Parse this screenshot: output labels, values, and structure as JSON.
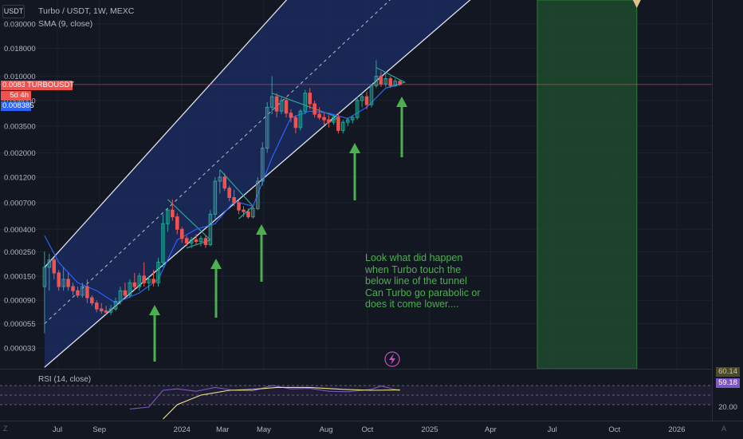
{
  "header": {
    "quote_currency": "USDT",
    "symbol_line": "Turbo / USDT, 1W, MEXC",
    "sma_label": "SMA (9, close)",
    "rsi_label": "RSI (14, close)"
  },
  "price_tags": {
    "last_price": "0.008399",
    "symbol": "TURBOUSDT",
    "countdown": "5d 4h",
    "sma_value": "0.008385"
  },
  "rsi_tags": {
    "upper": "60.14",
    "current": "59.18",
    "level_low": "20.00"
  },
  "annotation": [
    "Look what did happen",
    "when Turbo touch the",
    "below line of the tunnel",
    "Can Turbo go parabolic or",
    "does it come lower...."
  ],
  "colors": {
    "background": "#131722",
    "up_candle": "#26a69a",
    "down_candle": "#ef5350",
    "sma_line": "#2962ff",
    "channel_fill": "#1b2a5e",
    "channel_line": "#e0e3eb",
    "arrow": "#4caf50",
    "projection_zone": "#1e4a2e",
    "annotation_text": "#4caf50",
    "rsi_line": "#7e57c2"
  },
  "icons": {
    "logo": "tradingview-logo-icon",
    "lightning": "lightning-icon",
    "zoom": "zoom-icon",
    "projection_marker": "triangle-down-icon"
  },
  "chart_data": {
    "type": "candlestick",
    "title": "Turbo / USDT, 1W, MEXC",
    "yscale": "log",
    "ylim": [
      2.2e-05,
      0.03
    ],
    "y_tick_labels": [
      "0.030000",
      "0.018000",
      "0.010000",
      "0.006000",
      "0.003500",
      "0.002000",
      "0.001200",
      "0.000700",
      "0.000400",
      "0.000250",
      "0.000150",
      "0.000090",
      "0.000055",
      "0.000033"
    ],
    "x_tick_labels": [
      "Jul",
      "Sep",
      "2024",
      "Mar",
      "May",
      "Aug",
      "Oct",
      "2025",
      "Apr",
      "Jul",
      "Oct",
      "2026"
    ],
    "x_range": [
      "2023-06-12",
      "2026-03-15"
    ],
    "candles": [
      {
        "date": "2023-06-12",
        "o": 0.00012,
        "h": 0.00025,
        "l": 4.5e-05,
        "c": 0.00018
      },
      {
        "date": "2023-06-19",
        "o": 0.00018,
        "h": 0.00024,
        "l": 0.00011,
        "c": 0.00021
      },
      {
        "date": "2023-06-26",
        "o": 0.00021,
        "h": 0.00022,
        "l": 0.00014,
        "c": 0.00016
      },
      {
        "date": "2023-07-03",
        "o": 0.00016,
        "h": 0.00017,
        "l": 0.00011,
        "c": 0.00012
      },
      {
        "date": "2023-07-10",
        "o": 0.00012,
        "h": 0.00018,
        "l": 0.00011,
        "c": 0.00014
      },
      {
        "date": "2023-07-17",
        "o": 0.00014,
        "h": 0.00016,
        "l": 0.00011,
        "c": 0.00012
      },
      {
        "date": "2023-07-24",
        "o": 0.00012,
        "h": 0.00013,
        "l": 0.0001,
        "c": 0.00011
      },
      {
        "date": "2023-07-31",
        "o": 0.00011,
        "h": 0.00012,
        "l": 9.5e-05,
        "c": 0.0001
      },
      {
        "date": "2023-08-07",
        "o": 0.0001,
        "h": 0.00013,
        "l": 9.5e-05,
        "c": 0.00012
      },
      {
        "date": "2023-08-14",
        "o": 0.00012,
        "h": 0.00014,
        "l": 8.5e-05,
        "c": 9.5e-05
      },
      {
        "date": "2023-08-21",
        "o": 9.5e-05,
        "h": 0.0001,
        "l": 8e-05,
        "c": 8.5e-05
      },
      {
        "date": "2023-08-28",
        "o": 8.5e-05,
        "h": 9e-05,
        "l": 7e-05,
        "c": 7.5e-05
      },
      {
        "date": "2023-09-04",
        "o": 7.5e-05,
        "h": 8.5e-05,
        "l": 6.8e-05,
        "c": 7.2e-05
      },
      {
        "date": "2023-09-11",
        "o": 7.2e-05,
        "h": 8e-05,
        "l": 6.6e-05,
        "c": 7e-05
      },
      {
        "date": "2023-09-18",
        "o": 7e-05,
        "h": 8.2e-05,
        "l": 6.6e-05,
        "c": 7.5e-05
      },
      {
        "date": "2023-09-25",
        "o": 7.5e-05,
        "h": 9.5e-05,
        "l": 7.2e-05,
        "c": 8.8e-05
      },
      {
        "date": "2023-10-02",
        "o": 8.8e-05,
        "h": 0.00012,
        "l": 8.2e-05,
        "c": 0.00011
      },
      {
        "date": "2023-10-09",
        "o": 0.00011,
        "h": 0.00013,
        "l": 9.5e-05,
        "c": 0.0001
      },
      {
        "date": "2023-10-16",
        "o": 0.0001,
        "h": 0.00014,
        "l": 9.5e-05,
        "c": 0.00013
      },
      {
        "date": "2023-10-23",
        "o": 0.00013,
        "h": 0.00016,
        "l": 0.00011,
        "c": 0.00012
      },
      {
        "date": "2023-10-30",
        "o": 0.00012,
        "h": 0.00016,
        "l": 0.00011,
        "c": 0.00015
      },
      {
        "date": "2023-11-06",
        "o": 0.00015,
        "h": 0.0002,
        "l": 0.00012,
        "c": 0.00013
      },
      {
        "date": "2023-11-13",
        "o": 0.00013,
        "h": 0.00015,
        "l": 0.00011,
        "c": 0.00014
      },
      {
        "date": "2023-11-20",
        "o": 0.00014,
        "h": 0.00017,
        "l": 0.00012,
        "c": 0.00013
      },
      {
        "date": "2023-11-27",
        "o": 0.00013,
        "h": 0.00022,
        "l": 0.00012,
        "c": 0.0002
      },
      {
        "date": "2023-12-04",
        "o": 0.0002,
        "h": 0.00055,
        "l": 0.00018,
        "c": 0.00045
      },
      {
        "date": "2023-12-11",
        "o": 0.00045,
        "h": 0.00062,
        "l": 0.00038,
        "c": 0.0006
      },
      {
        "date": "2023-12-18",
        "o": 0.0006,
        "h": 0.00075,
        "l": 0.00048,
        "c": 0.00052
      },
      {
        "date": "2023-12-25",
        "o": 0.00052,
        "h": 0.00056,
        "l": 0.00036,
        "c": 0.0004
      },
      {
        "date": "2024-01-01",
        "o": 0.0004,
        "h": 0.00042,
        "l": 0.0003,
        "c": 0.00033
      },
      {
        "date": "2024-01-08",
        "o": 0.00033,
        "h": 0.00035,
        "l": 0.00028,
        "c": 0.0003
      },
      {
        "date": "2024-01-15",
        "o": 0.0003,
        "h": 0.00034,
        "l": 0.00027,
        "c": 0.00032
      },
      {
        "date": "2024-01-22",
        "o": 0.00032,
        "h": 0.00036,
        "l": 0.00029,
        "c": 0.00031
      },
      {
        "date": "2024-01-29",
        "o": 0.00031,
        "h": 0.00035,
        "l": 0.00028,
        "c": 0.00033
      },
      {
        "date": "2024-02-05",
        "o": 0.00033,
        "h": 0.00035,
        "l": 0.00027,
        "c": 0.00029
      },
      {
        "date": "2024-02-12",
        "o": 0.00029,
        "h": 0.0006,
        "l": 0.00028,
        "c": 0.00055
      },
      {
        "date": "2024-02-19",
        "o": 0.00055,
        "h": 0.0012,
        "l": 0.0005,
        "c": 0.0011
      },
      {
        "date": "2024-02-26",
        "o": 0.0011,
        "h": 0.0014,
        "l": 0.00085,
        "c": 0.0012
      },
      {
        "date": "2024-03-04",
        "o": 0.0012,
        "h": 0.0013,
        "l": 0.0009,
        "c": 0.00095
      },
      {
        "date": "2024-03-11",
        "o": 0.00095,
        "h": 0.001,
        "l": 0.00072,
        "c": 0.00078
      },
      {
        "date": "2024-03-18",
        "o": 0.00078,
        "h": 0.00092,
        "l": 0.00065,
        "c": 0.0007
      },
      {
        "date": "2024-03-25",
        "o": 0.0007,
        "h": 0.00074,
        "l": 0.00055,
        "c": 0.0006
      },
      {
        "date": "2024-04-01",
        "o": 0.0006,
        "h": 0.00065,
        "l": 0.00052,
        "c": 0.00058
      },
      {
        "date": "2024-04-08",
        "o": 0.00058,
        "h": 0.00062,
        "l": 0.0005,
        "c": 0.00052
      },
      {
        "date": "2024-04-15",
        "o": 0.00052,
        "h": 0.00065,
        "l": 0.0005,
        "c": 0.00062
      },
      {
        "date": "2024-04-22",
        "o": 0.00062,
        "h": 0.0012,
        "l": 0.0006,
        "c": 0.0011
      },
      {
        "date": "2024-04-29",
        "o": 0.0011,
        "h": 0.0025,
        "l": 0.001,
        "c": 0.0022
      },
      {
        "date": "2024-05-06",
        "o": 0.0022,
        "h": 0.0058,
        "l": 0.002,
        "c": 0.0052
      },
      {
        "date": "2024-05-13",
        "o": 0.0052,
        "h": 0.01,
        "l": 0.0045,
        "c": 0.0065
      },
      {
        "date": "2024-05-20",
        "o": 0.0065,
        "h": 0.007,
        "l": 0.0042,
        "c": 0.0048
      },
      {
        "date": "2024-05-27",
        "o": 0.0048,
        "h": 0.0065,
        "l": 0.0045,
        "c": 0.006
      },
      {
        "date": "2024-06-03",
        "o": 0.006,
        "h": 0.0064,
        "l": 0.0042,
        "c": 0.0046
      },
      {
        "date": "2024-06-10",
        "o": 0.0046,
        "h": 0.005,
        "l": 0.0038,
        "c": 0.0042
      },
      {
        "date": "2024-06-17",
        "o": 0.0042,
        "h": 0.0044,
        "l": 0.003,
        "c": 0.0034
      },
      {
        "date": "2024-06-24",
        "o": 0.0034,
        "h": 0.005,
        "l": 0.0032,
        "c": 0.0048
      },
      {
        "date": "2024-07-01",
        "o": 0.0048,
        "h": 0.0075,
        "l": 0.0045,
        "c": 0.007
      },
      {
        "date": "2024-07-08",
        "o": 0.007,
        "h": 0.0078,
        "l": 0.005,
        "c": 0.0056
      },
      {
        "date": "2024-07-15",
        "o": 0.0056,
        "h": 0.006,
        "l": 0.0042,
        "c": 0.0045
      },
      {
        "date": "2024-07-22",
        "o": 0.0045,
        "h": 0.0052,
        "l": 0.004,
        "c": 0.0042
      },
      {
        "date": "2024-07-29",
        "o": 0.0042,
        "h": 0.0046,
        "l": 0.0036,
        "c": 0.004
      },
      {
        "date": "2024-08-05",
        "o": 0.004,
        "h": 0.0044,
        "l": 0.0034,
        "c": 0.0038
      },
      {
        "date": "2024-08-12",
        "o": 0.0038,
        "h": 0.0045,
        "l": 0.0036,
        "c": 0.0042
      },
      {
        "date": "2024-08-19",
        "o": 0.0042,
        "h": 0.0046,
        "l": 0.003,
        "c": 0.0032
      },
      {
        "date": "2024-08-26",
        "o": 0.0032,
        "h": 0.004,
        "l": 0.003,
        "c": 0.0038
      },
      {
        "date": "2024-09-02",
        "o": 0.0038,
        "h": 0.0042,
        "l": 0.0035,
        "c": 0.004
      },
      {
        "date": "2024-09-09",
        "o": 0.004,
        "h": 0.0044,
        "l": 0.0037,
        "c": 0.0042
      },
      {
        "date": "2024-09-16",
        "o": 0.0042,
        "h": 0.0065,
        "l": 0.004,
        "c": 0.006
      },
      {
        "date": "2024-09-23",
        "o": 0.006,
        "h": 0.007,
        "l": 0.0052,
        "c": 0.0065
      },
      {
        "date": "2024-09-30",
        "o": 0.0065,
        "h": 0.0072,
        "l": 0.005,
        "c": 0.0055
      },
      {
        "date": "2024-10-07",
        "o": 0.0055,
        "h": 0.0085,
        "l": 0.0052,
        "c": 0.0082
      },
      {
        "date": "2024-10-14",
        "o": 0.0082,
        "h": 0.014,
        "l": 0.0078,
        "c": 0.01
      },
      {
        "date": "2024-10-21",
        "o": 0.01,
        "h": 0.011,
        "l": 0.008,
        "c": 0.0085
      },
      {
        "date": "2024-10-28",
        "o": 0.0085,
        "h": 0.0105,
        "l": 0.008,
        "c": 0.0095
      },
      {
        "date": "2024-11-04",
        "o": 0.0095,
        "h": 0.01,
        "l": 0.0078,
        "c": 0.0082
      },
      {
        "date": "2024-11-11",
        "o": 0.0082,
        "h": 0.0095,
        "l": 0.008,
        "c": 0.009
      },
      {
        "date": "2024-11-18",
        "o": 0.009,
        "h": 0.0092,
        "l": 0.0082,
        "c": 0.0084
      }
    ],
    "sma": [
      {
        "date": "2023-06-12",
        "v": 0.00035
      },
      {
        "date": "2023-07-03",
        "v": 0.0002
      },
      {
        "date": "2023-07-31",
        "v": 0.00013
      },
      {
        "date": "2023-08-28",
        "v": 0.00011
      },
      {
        "date": "2023-09-25",
        "v": 8.5e-05
      },
      {
        "date": "2023-10-30",
        "v": 0.000105
      },
      {
        "date": "2023-11-27",
        "v": 0.00014
      },
      {
        "date": "2023-12-25",
        "v": 0.00032
      },
      {
        "date": "2024-01-22",
        "v": 0.0004
      },
      {
        "date": "2024-02-19",
        "v": 0.00045
      },
      {
        "date": "2024-03-18",
        "v": 0.00072
      },
      {
        "date": "2024-04-15",
        "v": 0.00065
      },
      {
        "date": "2024-05-13",
        "v": 0.0018
      },
      {
        "date": "2024-06-10",
        "v": 0.0042
      },
      {
        "date": "2024-07-08",
        "v": 0.0048
      },
      {
        "date": "2024-08-05",
        "v": 0.0046
      },
      {
        "date": "2024-09-02",
        "v": 0.0041
      },
      {
        "date": "2024-09-30",
        "v": 0.0052
      },
      {
        "date": "2024-10-28",
        "v": 0.0078
      },
      {
        "date": "2024-11-18",
        "v": 0.008385
      }
    ],
    "channel": {
      "lower": {
        "start": {
          "date": "2023-06-12",
          "price": 2.2e-05
        },
        "end": {
          "date": "2025-03-10",
          "price": 0.055
        }
      },
      "middle": {
        "start": {
          "date": "2023-06-12",
          "price": 5.5e-05
        },
        "end": {
          "date": "2024-11-11",
          "price": 0.055
        }
      },
      "upper": {
        "start": {
          "date": "2023-06-12",
          "price": 0.00018
        },
        "end": {
          "date": "2024-06-10",
          "price": 0.055
        }
      }
    },
    "projection_zone": {
      "start": "2025-06-09",
      "end": "2025-11-03"
    },
    "rsi": {
      "ylim": [
        0,
        100
      ],
      "levels": [
        70,
        50,
        30
      ],
      "values": [
        {
          "date": "2023-10-16",
          "v": 21
        },
        {
          "date": "2023-11-13",
          "v": 25
        },
        {
          "date": "2023-12-04",
          "v": 60
        },
        {
          "date": "2023-12-25",
          "v": 63
        },
        {
          "date": "2024-01-22",
          "v": 58
        },
        {
          "date": "2024-02-19",
          "v": 66
        },
        {
          "date": "2024-03-18",
          "v": 60
        },
        {
          "date": "2024-04-15",
          "v": 59
        },
        {
          "date": "2024-05-13",
          "v": 70
        },
        {
          "date": "2024-06-10",
          "v": 63
        },
        {
          "date": "2024-07-08",
          "v": 64
        },
        {
          "date": "2024-08-05",
          "v": 58
        },
        {
          "date": "2024-09-02",
          "v": 57
        },
        {
          "date": "2024-10-07",
          "v": 62
        },
        {
          "date": "2024-10-21",
          "v": 69
        },
        {
          "date": "2024-11-18",
          "v": 59.18
        }
      ],
      "ma_values": [
        {
          "date": "2023-12-04",
          "v": 0
        },
        {
          "date": "2023-12-25",
          "v": 30
        },
        {
          "date": "2024-01-29",
          "v": 50
        },
        {
          "date": "2024-03-11",
          "v": 60
        },
        {
          "date": "2024-04-15",
          "v": 62
        },
        {
          "date": "2024-05-20",
          "v": 66
        },
        {
          "date": "2024-07-08",
          "v": 66
        },
        {
          "date": "2024-08-26",
          "v": 62
        },
        {
          "date": "2024-10-07",
          "v": 60
        },
        {
          "date": "2024-11-18",
          "v": 61
        }
      ]
    }
  }
}
